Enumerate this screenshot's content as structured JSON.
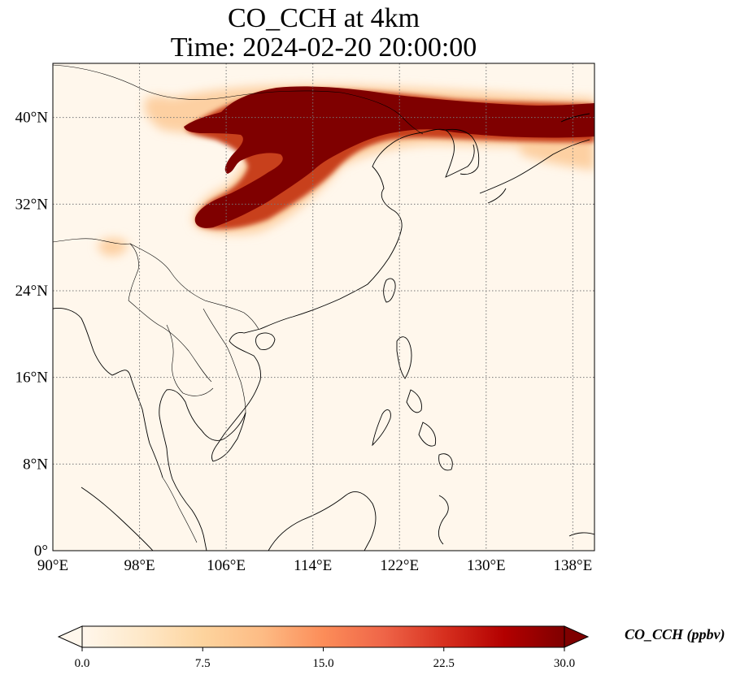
{
  "title": {
    "line1": "CO_CCH at 4km",
    "line2": "Time: 2024-02-20 20:00:00"
  },
  "map": {
    "projection": "PlateCarree",
    "lon_range": [
      90,
      140
    ],
    "lat_range": [
      0,
      45
    ],
    "gridlines": "dotted",
    "lon_ticks": [
      {
        "value": 90,
        "label": "90°E"
      },
      {
        "value": 98,
        "label": "98°E"
      },
      {
        "value": 106,
        "label": "106°E"
      },
      {
        "value": 114,
        "label": "114°E"
      },
      {
        "value": 122,
        "label": "122°E"
      },
      {
        "value": 130,
        "label": "130°E"
      },
      {
        "value": 138,
        "label": "138°E"
      }
    ],
    "lat_ticks": [
      {
        "value": 0,
        "label": "0°"
      },
      {
        "value": 8,
        "label": "8°N"
      },
      {
        "value": 16,
        "label": "16°N"
      },
      {
        "value": 24,
        "label": "24°N"
      },
      {
        "value": 32,
        "label": "32°N"
      },
      {
        "value": 40,
        "label": "40°N"
      }
    ],
    "background_color": "#fff7ec",
    "plume_colors": {
      "high": "#7f0000",
      "mid": "#c8401c",
      "low": "#fdd0a2"
    }
  },
  "colorbar": {
    "label": "CO_CCH (ppbv)",
    "min": 0.0,
    "max": 30.0,
    "extend": "both",
    "colormap": "OrRd",
    "colors": [
      "#fff7ec",
      "#fee8c8",
      "#fdd49e",
      "#fdbb84",
      "#fc8d59",
      "#ef6548",
      "#d7301f",
      "#b30000",
      "#7f0000"
    ],
    "ticks": [
      {
        "value": 0.0,
        "label": "0.0"
      },
      {
        "value": 7.5,
        "label": "7.5"
      },
      {
        "value": 15.0,
        "label": "15.0"
      },
      {
        "value": 22.5,
        "label": "22.5"
      },
      {
        "value": 30.0,
        "label": "30.0"
      }
    ]
  }
}
